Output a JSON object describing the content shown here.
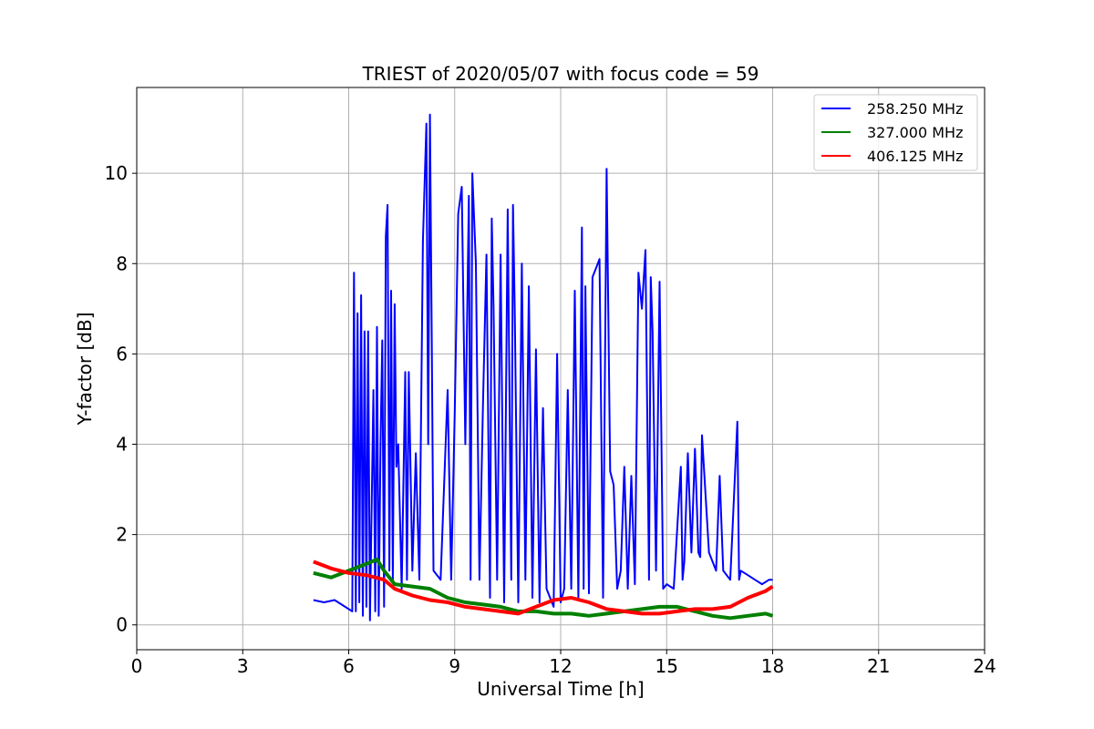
{
  "chart_data": {
    "type": "line",
    "title": "TRIEST of 2020/05/07 with focus code = 59",
    "xlabel": "Universal Time [h]",
    "ylabel": "Y-factor [dB]",
    "xlim": [
      0,
      24
    ],
    "ylim": [
      -0.55,
      11.9
    ],
    "xticks": [
      0,
      3,
      6,
      9,
      12,
      15,
      18,
      21,
      24
    ],
    "yticks": [
      0,
      2,
      4,
      6,
      8,
      10
    ],
    "grid": true,
    "legend_position": "top-right",
    "series": [
      {
        "name": "258.250 MHz",
        "color": "#0000ff",
        "x": [
          5.0,
          5.3,
          5.6,
          5.9,
          6.1,
          6.15,
          6.2,
          6.25,
          6.3,
          6.35,
          6.4,
          6.45,
          6.5,
          6.55,
          6.6,
          6.7,
          6.75,
          6.8,
          6.85,
          6.9,
          6.95,
          7.0,
          7.05,
          7.1,
          7.15,
          7.2,
          7.25,
          7.3,
          7.35,
          7.4,
          7.5,
          7.6,
          7.65,
          7.7,
          7.8,
          7.9,
          8.0,
          8.1,
          8.2,
          8.25,
          8.3,
          8.35,
          8.4,
          8.5,
          8.6,
          8.8,
          8.9,
          9.0,
          9.1,
          9.2,
          9.3,
          9.4,
          9.45,
          9.5,
          9.6,
          9.7,
          9.8,
          9.9,
          10.0,
          10.05,
          10.1,
          10.2,
          10.3,
          10.4,
          10.5,
          10.6,
          10.65,
          10.7,
          10.8,
          10.9,
          11.0,
          11.1,
          11.2,
          11.3,
          11.4,
          11.5,
          11.6,
          11.7,
          11.8,
          11.9,
          12.0,
          12.1,
          12.2,
          12.3,
          12.4,
          12.5,
          12.6,
          12.65,
          12.7,
          12.8,
          12.9,
          13.0,
          13.1,
          13.2,
          13.3,
          13.4,
          13.5,
          13.6,
          13.7,
          13.8,
          13.9,
          14.0,
          14.1,
          14.2,
          14.3,
          14.4,
          14.5,
          14.55,
          14.6,
          14.7,
          14.8,
          14.9,
          15.0,
          15.2,
          15.4,
          15.45,
          15.5,
          15.6,
          15.7,
          15.8,
          15.9,
          15.95,
          16.0,
          16.2,
          16.4,
          16.5,
          16.6,
          16.8,
          17.0,
          17.05,
          17.1,
          17.3,
          17.5,
          17.7,
          17.9,
          18.0
        ],
        "y": [
          0.55,
          0.5,
          0.55,
          0.4,
          0.3,
          7.8,
          0.3,
          6.9,
          0.5,
          7.3,
          0.2,
          6.5,
          0.4,
          6.5,
          0.1,
          5.2,
          0.3,
          6.6,
          0.2,
          4.0,
          6.3,
          0.4,
          8.6,
          9.3,
          1.2,
          7.4,
          1.0,
          7.1,
          3.5,
          4.0,
          0.8,
          5.6,
          1.0,
          5.6,
          1.2,
          3.8,
          1.0,
          8.5,
          11.1,
          4.0,
          11.3,
          6.3,
          1.2,
          1.1,
          1.0,
          5.2,
          1.0,
          4.7,
          9.1,
          9.7,
          4.0,
          9.5,
          1.0,
          10.0,
          8.0,
          1.0,
          4.9,
          8.2,
          0.6,
          9.0,
          7.0,
          1.0,
          8.2,
          0.5,
          9.2,
          1.0,
          9.3,
          7.0,
          0.5,
          8.0,
          1.0,
          7.5,
          0.6,
          6.1,
          0.5,
          4.8,
          0.8,
          0.6,
          0.4,
          6.0,
          0.5,
          0.8,
          5.2,
          0.8,
          7.4,
          0.6,
          8.8,
          0.8,
          7.5,
          0.7,
          7.7,
          7.9,
          8.1,
          0.6,
          10.1,
          3.4,
          3.1,
          0.8,
          1.2,
          3.5,
          0.8,
          3.3,
          0.9,
          7.8,
          7.0,
          8.3,
          1.0,
          7.7,
          6.5,
          1.2,
          7.6,
          0.8,
          0.9,
          0.8,
          3.5,
          1.0,
          1.4,
          3.8,
          1.6,
          3.9,
          1.6,
          1.5,
          4.2,
          1.6,
          1.2,
          3.3,
          1.2,
          1.0,
          4.5,
          1.0,
          1.2,
          1.1,
          1.0,
          0.9,
          1.0,
          1.0
        ]
      },
      {
        "name": "327.000 MHz",
        "color": "#008000",
        "x": [
          5.0,
          5.5,
          6.0,
          6.5,
          6.8,
          7.0,
          7.3,
          7.8,
          8.3,
          8.8,
          9.3,
          9.8,
          10.3,
          10.8,
          11.3,
          11.8,
          12.3,
          12.8,
          13.3,
          13.8,
          14.3,
          14.8,
          15.3,
          15.8,
          16.3,
          16.8,
          17.3,
          17.8,
          18.0
        ],
        "y": [
          1.15,
          1.05,
          1.2,
          1.35,
          1.45,
          1.2,
          0.9,
          0.85,
          0.8,
          0.6,
          0.5,
          0.45,
          0.4,
          0.3,
          0.3,
          0.25,
          0.25,
          0.2,
          0.25,
          0.3,
          0.35,
          0.4,
          0.4,
          0.3,
          0.2,
          0.15,
          0.2,
          0.25,
          0.2
        ]
      },
      {
        "name": "406.125 MHz",
        "color": "#ff0000",
        "x": [
          5.0,
          5.5,
          6.0,
          6.5,
          7.0,
          7.3,
          7.8,
          8.3,
          8.8,
          9.3,
          9.8,
          10.3,
          10.8,
          11.3,
          11.8,
          12.3,
          12.8,
          13.3,
          13.8,
          14.3,
          14.8,
          15.3,
          15.8,
          16.3,
          16.8,
          17.3,
          17.8,
          18.0
        ],
        "y": [
          1.4,
          1.25,
          1.15,
          1.1,
          1.0,
          0.8,
          0.65,
          0.55,
          0.5,
          0.4,
          0.35,
          0.3,
          0.25,
          0.4,
          0.55,
          0.6,
          0.5,
          0.35,
          0.3,
          0.25,
          0.25,
          0.3,
          0.35,
          0.35,
          0.4,
          0.6,
          0.75,
          0.85
        ]
      }
    ]
  }
}
